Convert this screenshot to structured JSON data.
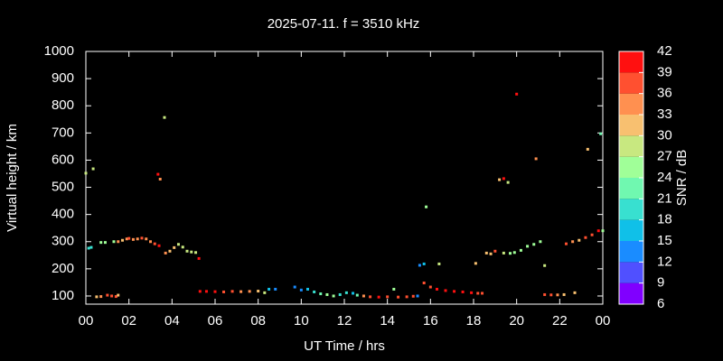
{
  "chart_data": {
    "type": "scatter",
    "title": "2025-07-11. f = 3510 kHz",
    "x_label": "UT Time / hrs",
    "y_label": "Virtual height / km",
    "colorbar_label": "SNR / dB",
    "xlim": [
      0,
      24
    ],
    "xticks": [
      {
        "value": 0,
        "label": "00"
      },
      {
        "value": 2,
        "label": "02"
      },
      {
        "value": 4,
        "label": "04"
      },
      {
        "value": 6,
        "label": "06"
      },
      {
        "value": 8,
        "label": "08"
      },
      10,
      12,
      14,
      16,
      18,
      20,
      22,
      {
        "value": 24,
        "label": "00"
      }
    ],
    "ylim": [
      70,
      1000
    ],
    "yticks": [
      100,
      200,
      300,
      400,
      500,
      600,
      700,
      800,
      900,
      1000
    ],
    "clim": [
      6,
      42
    ],
    "cticks": [
      6,
      9,
      12,
      15,
      18,
      21,
      24,
      27,
      30,
      33,
      36,
      39,
      42
    ],
    "colormap": [
      "#8000ff",
      "#5050ff",
      "#1a8cff",
      "#10c0e8",
      "#38e0d0",
      "#70f8b0",
      "#a0ff98",
      "#c8e880",
      "#f8c070",
      "#ff9050",
      "#ff5030",
      "#ff1010"
    ],
    "x": [
      0,
      0.34,
      0.13,
      0.25,
      0.7,
      0.9,
      1.3,
      1.5,
      1.7,
      1.9,
      2.0,
      2.2,
      2.4,
      2.6,
      2.8,
      3.0,
      3.2,
      3.4,
      3.35,
      3.45,
      3.65,
      3.7,
      3.9,
      4.1,
      4.3,
      4.5,
      4.7,
      4.9,
      5.1,
      5.25,
      0.5,
      0.7,
      1.0,
      1.2,
      1.4,
      1.5,
      5.3,
      5.6,
      6.0,
      6.4,
      6.8,
      7.2,
      7.6,
      8.0,
      8.3,
      8.5,
      8.8,
      9.7,
      10.0,
      10.3,
      10.6,
      10.9,
      11.2,
      11.5,
      11.8,
      12.1,
      12.4,
      12.6,
      12.9,
      13.2,
      13.6,
      14.0,
      14.3,
      14.5,
      14.9,
      15.2,
      15.4,
      15.5,
      15.7,
      15.8,
      16.4,
      15.7,
      16.0,
      16.3,
      16.7,
      17.1,
      17.5,
      17.9,
      18.2,
      18.4,
      18.1,
      18.6,
      18.8,
      19.0,
      19.2,
      19.4,
      19.6,
      19.4,
      19.7,
      19.9,
      20.2,
      20.5,
      20.8,
      21.1,
      20.9,
      20.0,
      21.3,
      21.3,
      21.6,
      21.9,
      22.2,
      22.7,
      22.3,
      22.6,
      22.9,
      23.2,
      23.5,
      23.8,
      23.3,
      23.9,
      24.0
    ],
    "y": [
      552,
      568,
      276,
      279,
      297,
      297,
      300,
      300,
      305,
      310,
      312,
      308,
      310,
      313,
      310,
      300,
      292,
      285,
      548,
      530,
      757,
      258,
      265,
      278,
      290,
      280,
      265,
      262,
      260,
      238,
      97,
      98,
      103,
      100,
      98,
      103,
      117,
      117,
      116,
      115,
      117,
      116,
      117,
      118,
      112,
      125,
      125,
      133,
      122,
      125,
      115,
      108,
      105,
      100,
      105,
      112,
      110,
      103,
      100,
      97,
      96,
      97,
      125,
      96,
      97,
      99,
      100,
      213,
      218,
      428,
      218,
      148,
      133,
      125,
      120,
      117,
      115,
      112,
      110,
      110,
      220,
      258,
      255,
      265,
      528,
      532,
      518,
      258,
      257,
      260,
      268,
      283,
      290,
      300,
      605,
      843,
      212,
      105,
      104,
      104,
      105,
      112,
      292,
      300,
      305,
      315,
      325,
      340,
      640,
      697,
      340
    ],
    "snr": [
      28,
      27,
      20,
      20,
      25,
      25,
      24,
      33,
      32,
      33,
      36,
      33,
      34,
      36,
      33,
      33,
      36,
      39,
      39,
      33,
      27,
      33,
      30,
      30,
      29,
      27,
      28,
      27,
      28,
      40,
      30,
      33,
      36,
      36,
      38,
      30,
      39,
      39,
      40,
      38,
      36,
      34,
      33,
      30,
      28,
      15,
      14,
      12,
      14,
      16,
      18,
      22,
      24,
      24,
      20,
      18,
      16,
      22,
      34,
      38,
      39,
      37,
      24,
      38,
      36,
      38,
      12,
      14,
      17,
      24,
      27,
      36,
      38,
      39,
      39,
      40,
      40,
      39,
      38,
      36,
      30,
      30,
      32,
      36,
      30,
      40,
      28,
      28,
      26,
      24,
      24,
      24,
      26,
      24,
      33,
      40,
      28,
      38,
      36,
      33,
      32,
      30,
      36,
      34,
      32,
      36,
      38,
      39,
      30,
      22,
      25
    ]
  }
}
